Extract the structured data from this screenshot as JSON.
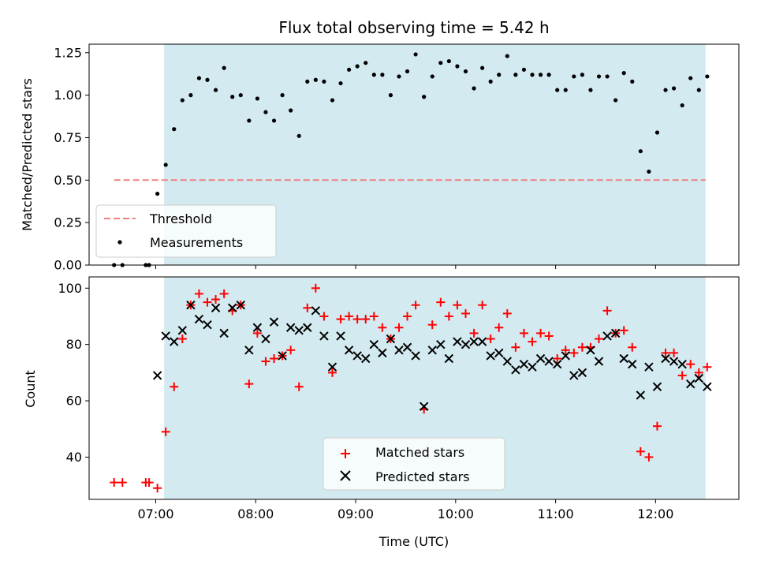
{
  "chart_data": [
    {
      "type": "line+scatter",
      "title": "Flux total observing time = 5.42 h",
      "xlabel": "",
      "ylabel": "Matched/Predicted stars",
      "xlim": [
        "06:20",
        "12:50"
      ],
      "ylim": [
        0,
        1.3
      ],
      "yticks": [
        0.0,
        0.25,
        0.5,
        0.75,
        1.0,
        1.25
      ],
      "ytick_labels": [
        "0.00",
        "0.25",
        "0.50",
        "0.75",
        "1.00",
        "1.25"
      ],
      "shaded_span": [
        "07:05",
        "12:30"
      ],
      "threshold": {
        "name": "Threshold",
        "value": 0.5,
        "x_range": [
          "06:35",
          "12:30"
        ],
        "color": "#f08080",
        "style": "dashed"
      },
      "series": [
        {
          "name": "Measurements",
          "type": "scatter",
          "color": "#000000",
          "x": [
            "06:35",
            "06:40",
            "06:54",
            "06:56",
            "07:01",
            "07:06",
            "07:11",
            "07:16",
            "07:21",
            "07:26",
            "07:31",
            "07:36",
            "07:41",
            "07:46",
            "07:51",
            "07:56",
            "08:01",
            "08:06",
            "08:11",
            "08:16",
            "08:21",
            "08:26",
            "08:31",
            "08:36",
            "08:41",
            "08:46",
            "08:51",
            "08:56",
            "09:01",
            "09:06",
            "09:11",
            "09:16",
            "09:21",
            "09:26",
            "09:31",
            "09:36",
            "09:41",
            "09:46",
            "09:51",
            "09:56",
            "10:01",
            "10:06",
            "10:11",
            "10:16",
            "10:21",
            "10:26",
            "10:31",
            "10:36",
            "10:41",
            "10:46",
            "10:51",
            "10:56",
            "11:01",
            "11:06",
            "11:11",
            "11:16",
            "11:21",
            "11:26",
            "11:31",
            "11:36",
            "11:41",
            "11:46",
            "11:51",
            "11:56",
            "12:01",
            "12:06",
            "12:11",
            "12:16",
            "12:21",
            "12:26",
            "12:31"
          ],
          "y": [
            0.0,
            0.0,
            0.0,
            0.0,
            0.42,
            0.59,
            0.8,
            0.97,
            1.0,
            1.1,
            1.09,
            1.03,
            1.16,
            0.99,
            1.0,
            0.85,
            0.98,
            0.9,
            0.85,
            1.0,
            0.91,
            0.76,
            1.08,
            1.09,
            1.08,
            0.97,
            1.07,
            1.15,
            1.17,
            1.19,
            1.12,
            1.12,
            1.0,
            1.11,
            1.14,
            1.24,
            0.99,
            1.11,
            1.19,
            1.2,
            1.17,
            1.14,
            1.04,
            1.16,
            1.08,
            1.12,
            1.23,
            1.12,
            1.15,
            1.12,
            1.12,
            1.12,
            1.03,
            1.03,
            1.11,
            1.12,
            1.03,
            1.11,
            1.11,
            0.97,
            1.13,
            1.08,
            0.67,
            0.55,
            0.78,
            1.03,
            1.04,
            0.94,
            1.1,
            1.03,
            1.11
          ]
        }
      ],
      "legend": {
        "placement": "lower-left",
        "entries": [
          "Threshold",
          "Measurements"
        ]
      }
    },
    {
      "type": "scatter",
      "title": "",
      "xlabel": "Time (UTC)",
      "ylabel": "Count",
      "xlim": [
        "06:20",
        "12:50"
      ],
      "ylim": [
        25,
        104
      ],
      "xticks": [
        "07:00",
        "08:00",
        "09:00",
        "10:00",
        "11:00",
        "12:00"
      ],
      "yticks": [
        40,
        60,
        80,
        100
      ],
      "shaded_span": [
        "07:05",
        "12:30"
      ],
      "series": [
        {
          "name": "Matched stars",
          "marker": "+",
          "color": "#ff0000",
          "x": [
            "06:35",
            "06:40",
            "06:54",
            "06:56",
            "07:01",
            "07:06",
            "07:11",
            "07:16",
            "07:21",
            "07:26",
            "07:31",
            "07:36",
            "07:41",
            "07:46",
            "07:51",
            "07:56",
            "08:01",
            "08:06",
            "08:11",
            "08:16",
            "08:21",
            "08:26",
            "08:31",
            "08:36",
            "08:41",
            "08:46",
            "08:51",
            "08:56",
            "09:01",
            "09:06",
            "09:11",
            "09:16",
            "09:21",
            "09:26",
            "09:31",
            "09:36",
            "09:41",
            "09:46",
            "09:51",
            "09:56",
            "10:01",
            "10:06",
            "10:11",
            "10:16",
            "10:21",
            "10:26",
            "10:31",
            "10:36",
            "10:41",
            "10:46",
            "10:51",
            "10:56",
            "11:01",
            "11:06",
            "11:11",
            "11:16",
            "11:21",
            "11:26",
            "11:31",
            "11:36",
            "11:41",
            "11:46",
            "11:51",
            "11:56",
            "12:01",
            "12:06",
            "12:11",
            "12:16",
            "12:21",
            "12:26",
            "12:31"
          ],
          "y": [
            31,
            31,
            31,
            31,
            29,
            49,
            65,
            82,
            94,
            98,
            95,
            96,
            98,
            92,
            94,
            66,
            84,
            74,
            75,
            76,
            78,
            65,
            93,
            100,
            90,
            70,
            89,
            90,
            89,
            89,
            90,
            86,
            82,
            86,
            90,
            94,
            57,
            87,
            95,
            90,
            94,
            91,
            84,
            94,
            82,
            86,
            91,
            79,
            84,
            81,
            84,
            83,
            75,
            78,
            77,
            79,
            79,
            82,
            92,
            84,
            85,
            79,
            42,
            40,
            51,
            77,
            77,
            69,
            73,
            70,
            72
          ]
        },
        {
          "name": "Predicted stars",
          "marker": "x",
          "color": "#000000",
          "x": [
            "07:01",
            "07:06",
            "07:11",
            "07:16",
            "07:21",
            "07:26",
            "07:31",
            "07:36",
            "07:41",
            "07:46",
            "07:51",
            "07:56",
            "08:01",
            "08:06",
            "08:11",
            "08:16",
            "08:21",
            "08:26",
            "08:31",
            "08:36",
            "08:41",
            "08:46",
            "08:51",
            "08:56",
            "09:01",
            "09:06",
            "09:11",
            "09:16",
            "09:21",
            "09:26",
            "09:31",
            "09:36",
            "09:41",
            "09:46",
            "09:51",
            "09:56",
            "10:01",
            "10:06",
            "10:11",
            "10:16",
            "10:21",
            "10:26",
            "10:31",
            "10:36",
            "10:41",
            "10:46",
            "10:51",
            "10:56",
            "11:01",
            "11:06",
            "11:11",
            "11:16",
            "11:21",
            "11:26",
            "11:31",
            "11:36",
            "11:41",
            "11:46",
            "11:51",
            "11:56",
            "12:01",
            "12:06",
            "12:11",
            "12:16",
            "12:21",
            "12:26",
            "12:31"
          ],
          "y": [
            69,
            83,
            81,
            85,
            94,
            89,
            87,
            93,
            84,
            93,
            94,
            78,
            86,
            82,
            88,
            76,
            86,
            85,
            86,
            92,
            83,
            72,
            83,
            78,
            76,
            75,
            80,
            77,
            82,
            78,
            79,
            76,
            58,
            78,
            80,
            75,
            81,
            80,
            81,
            81,
            76,
            77,
            74,
            71,
            73,
            72,
            75,
            74,
            73,
            76,
            69,
            70,
            78,
            74,
            83,
            84,
            75,
            73,
            62,
            72,
            65,
            75,
            74,
            73,
            66,
            68,
            65
          ]
        }
      ],
      "legend": {
        "placement": "lower-center",
        "entries": [
          "Matched stars",
          "Predicted stars"
        ]
      }
    }
  ],
  "colors": {
    "shade": "#d3eaf0",
    "threshold": "#f08080",
    "matched": "#ff0000",
    "predicted": "#000000"
  }
}
